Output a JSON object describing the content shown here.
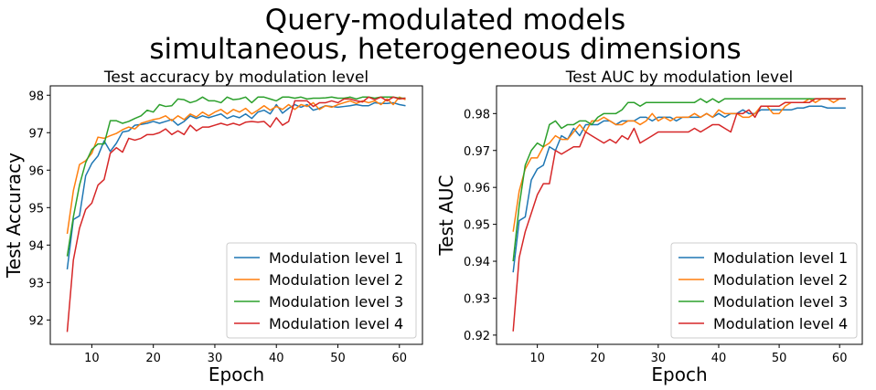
{
  "figure": {
    "suptitle_line1": "Query-modulated models",
    "suptitle_line2": "simultaneous, heterogeneous dimensions"
  },
  "chart_data": [
    {
      "type": "line",
      "title": "Test accuracy by modulation level",
      "xlabel": "Epoch",
      "ylabel": "Test Accuracy",
      "xlim": [
        3.25,
        63.75
      ],
      "ylim": [
        91.35,
        98.25
      ],
      "xticks": [
        10,
        20,
        30,
        40,
        50,
        60
      ],
      "yticks": [
        92,
        93,
        94,
        95,
        96,
        97,
        98
      ],
      "ytick_labels": [
        "92",
        "93",
        "94",
        "95",
        "96",
        "97",
        "98"
      ],
      "grid": false,
      "legend": "lower-right",
      "x_start": 6,
      "series": [
        {
          "name": "Modulation level 1",
          "color": "#1f77b4",
          "values": [
            93.35,
            94.68,
            94.78,
            95.85,
            96.18,
            96.38,
            96.78,
            96.5,
            96.72,
            97.02,
            97.05,
            97.2,
            97.22,
            97.25,
            97.3,
            97.25,
            97.3,
            97.35,
            97.2,
            97.3,
            97.45,
            97.38,
            97.45,
            97.4,
            97.45,
            97.5,
            97.38,
            97.45,
            97.4,
            97.5,
            97.38,
            97.55,
            97.6,
            97.5,
            97.75,
            97.52,
            97.65,
            97.75,
            97.68,
            97.75,
            97.6,
            97.65,
            97.72,
            97.7,
            97.68,
            97.7,
            97.72,
            97.75,
            97.72,
            97.72,
            97.8,
            97.78,
            97.78,
            97.8,
            97.75,
            97.72
          ]
        },
        {
          "name": "Modulation level 2",
          "color": "#ff7f0e",
          "values": [
            94.3,
            95.45,
            96.15,
            96.25,
            96.45,
            96.88,
            96.85,
            96.92,
            96.98,
            97.08,
            97.15,
            97.1,
            97.25,
            97.3,
            97.35,
            97.38,
            97.45,
            97.32,
            97.45,
            97.35,
            97.5,
            97.42,
            97.55,
            97.45,
            97.55,
            97.62,
            97.5,
            97.62,
            97.55,
            97.65,
            97.5,
            97.6,
            97.72,
            97.6,
            97.7,
            97.62,
            97.75,
            97.62,
            97.75,
            97.7,
            97.8,
            97.62,
            97.72,
            97.68,
            97.75,
            97.8,
            97.85,
            97.78,
            97.85,
            97.8,
            97.85,
            97.75,
            97.9,
            97.75,
            97.95,
            97.88
          ]
        },
        {
          "name": "Modulation level 3",
          "color": "#2ca02c",
          "values": [
            93.7,
            94.75,
            95.6,
            96.2,
            96.55,
            96.7,
            96.7,
            97.32,
            97.32,
            97.25,
            97.3,
            97.38,
            97.45,
            97.6,
            97.55,
            97.75,
            97.7,
            97.72,
            97.9,
            97.88,
            97.8,
            97.85,
            97.95,
            97.85,
            97.85,
            97.8,
            97.95,
            97.88,
            97.9,
            97.95,
            97.8,
            97.95,
            97.95,
            97.9,
            97.85,
            97.95,
            97.95,
            97.92,
            97.95,
            97.9,
            97.92,
            97.92,
            97.93,
            97.95,
            97.92,
            97.92,
            97.95,
            97.9,
            97.95,
            97.95,
            97.92,
            97.95,
            97.95,
            97.95,
            97.92,
            97.92
          ]
        },
        {
          "name": "Modulation level 4",
          "color": "#d62728",
          "values": [
            91.68,
            93.6,
            94.45,
            94.95,
            95.12,
            95.6,
            95.75,
            96.45,
            96.6,
            96.48,
            96.85,
            96.8,
            96.85,
            96.95,
            96.95,
            97.0,
            97.1,
            96.95,
            97.05,
            96.95,
            97.2,
            97.05,
            97.15,
            97.15,
            97.2,
            97.25,
            97.2,
            97.25,
            97.2,
            97.28,
            97.3,
            97.28,
            97.3,
            97.15,
            97.4,
            97.2,
            97.3,
            97.85,
            97.85,
            97.85,
            97.7,
            97.8,
            97.8,
            97.85,
            97.8,
            97.9,
            97.9,
            97.85,
            97.82,
            97.95,
            97.88,
            97.95,
            97.85,
            97.95,
            97.9,
            97.92
          ]
        }
      ]
    },
    {
      "type": "line",
      "title": "Test AUC by modulation level",
      "xlabel": "Epoch",
      "ylabel": "Test AUC",
      "xlim": [
        3.25,
        63.75
      ],
      "ylim": [
        0.9175,
        0.9875
      ],
      "xticks": [
        10,
        20,
        30,
        40,
        50,
        60
      ],
      "yticks": [
        0.92,
        0.93,
        0.94,
        0.95,
        0.96,
        0.97,
        0.98
      ],
      "ytick_labels": [
        "0.92",
        "0.93",
        "0.94",
        "0.95",
        "0.96",
        "0.97",
        "0.98"
      ],
      "grid": false,
      "legend": "lower-right",
      "x_start": 6,
      "series": [
        {
          "name": "Modulation level 1",
          "color": "#1f77b4",
          "values": [
            0.937,
            0.951,
            0.952,
            0.962,
            0.965,
            0.966,
            0.971,
            0.97,
            0.974,
            0.973,
            0.976,
            0.974,
            0.977,
            0.977,
            0.977,
            0.978,
            0.978,
            0.977,
            0.978,
            0.978,
            0.978,
            0.979,
            0.979,
            0.978,
            0.979,
            0.979,
            0.979,
            0.978,
            0.979,
            0.979,
            0.979,
            0.979,
            0.98,
            0.979,
            0.98,
            0.979,
            0.98,
            0.98,
            0.981,
            0.98,
            0.98,
            0.981,
            0.981,
            0.981,
            0.981,
            0.981,
            0.981,
            0.9815,
            0.9815,
            0.982,
            0.982,
            0.982,
            0.9815,
            0.9815,
            0.9815,
            0.9815
          ]
        },
        {
          "name": "Modulation level 2",
          "color": "#ff7f0e",
          "values": [
            0.948,
            0.959,
            0.965,
            0.968,
            0.968,
            0.971,
            0.972,
            0.974,
            0.973,
            0.973,
            0.975,
            0.977,
            0.975,
            0.978,
            0.978,
            0.979,
            0.978,
            0.977,
            0.977,
            0.978,
            0.978,
            0.977,
            0.978,
            0.98,
            0.978,
            0.979,
            0.978,
            0.979,
            0.979,
            0.979,
            0.98,
            0.979,
            0.98,
            0.979,
            0.981,
            0.98,
            0.98,
            0.98,
            0.979,
            0.979,
            0.98,
            0.982,
            0.982,
            0.98,
            0.98,
            0.982,
            0.983,
            0.983,
            0.983,
            0.984,
            0.983,
            0.984,
            0.984,
            0.983,
            0.984,
            0.984
          ]
        },
        {
          "name": "Modulation level 3",
          "color": "#2ca02c",
          "values": [
            0.94,
            0.955,
            0.966,
            0.97,
            0.972,
            0.971,
            0.977,
            0.978,
            0.976,
            0.977,
            0.977,
            0.978,
            0.978,
            0.977,
            0.979,
            0.98,
            0.98,
            0.98,
            0.981,
            0.983,
            0.983,
            0.982,
            0.983,
            0.983,
            0.983,
            0.983,
            0.983,
            0.983,
            0.983,
            0.983,
            0.983,
            0.984,
            0.983,
            0.984,
            0.983,
            0.984,
            0.984,
            0.984,
            0.984,
            0.984,
            0.984,
            0.984,
            0.984,
            0.984,
            0.984,
            0.984,
            0.984,
            0.984,
            0.984,
            0.984,
            0.984,
            0.984,
            0.984,
            0.984,
            0.984,
            0.984
          ]
        },
        {
          "name": "Modulation level 4",
          "color": "#d62728",
          "values": [
            0.921,
            0.941,
            0.948,
            0.953,
            0.958,
            0.961,
            0.961,
            0.97,
            0.969,
            0.97,
            0.971,
            0.971,
            0.975,
            0.974,
            0.973,
            0.972,
            0.973,
            0.972,
            0.974,
            0.973,
            0.976,
            0.972,
            0.973,
            0.974,
            0.975,
            0.975,
            0.975,
            0.975,
            0.975,
            0.975,
            0.976,
            0.975,
            0.976,
            0.977,
            0.977,
            0.976,
            0.975,
            0.98,
            0.98,
            0.981,
            0.979,
            0.982,
            0.982,
            0.982,
            0.982,
            0.983,
            0.983,
            0.983,
            0.983,
            0.983,
            0.984,
            0.984,
            0.984,
            0.984,
            0.984,
            0.984
          ]
        }
      ]
    }
  ]
}
